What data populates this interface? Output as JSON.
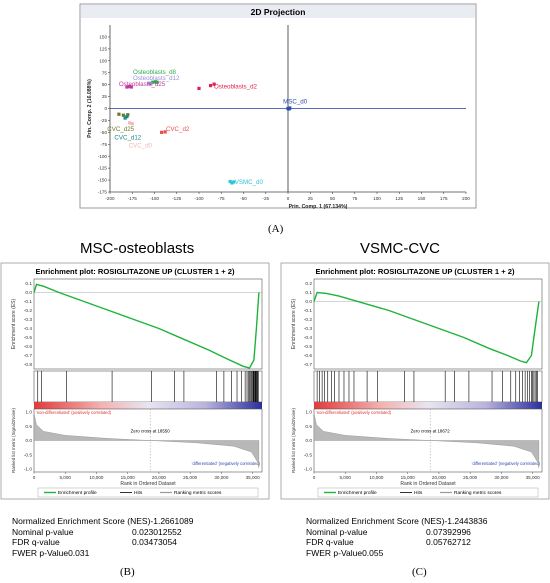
{
  "pca": {
    "title": "2D Projection",
    "xlabel": "Prin. Comp. 1  (67.134%)",
    "ylabel": "Prin. Comp. 2  (16.088%)",
    "xlim": [
      -200,
      200
    ],
    "ylim": [
      -175,
      175
    ],
    "xticks": [
      -200,
      -175,
      -150,
      -125,
      -100,
      -75,
      -50,
      -25,
      0,
      25,
      50,
      75,
      100,
      125,
      150,
      175,
      200
    ],
    "yticks": [
      150,
      125,
      100,
      75,
      50,
      25,
      0,
      -25,
      -50,
      -75,
      -100,
      -125,
      -150,
      -175
    ],
    "groups": [
      {
        "name": "Osteoblasts_d8",
        "color": "#2fa84f",
        "label_pos": [
          -150,
          72
        ],
        "points": [
          [
            -152,
            55
          ],
          [
            -149,
            56
          ],
          [
            -147,
            55
          ]
        ]
      },
      {
        "name": "Osteoblasts_d12",
        "color": "#9b8fd6",
        "label_pos": [
          -148,
          60
        ],
        "points": [
          [
            -156,
            53
          ],
          [
            -154,
            52
          ]
        ]
      },
      {
        "name": "Osteoblasts_d25",
        "color": "#c0399f",
        "label_pos": [
          -164,
          47
        ],
        "points": [
          [
            -181,
            45
          ],
          [
            -178,
            46
          ],
          [
            -176,
            45
          ]
        ]
      },
      {
        "name": "Osteoblasts_d2",
        "color": "#e0204f",
        "label_pos": [
          -59,
          42
        ],
        "points": [
          [
            -100,
            42
          ],
          [
            -87,
            48
          ],
          [
            -83,
            51
          ]
        ]
      },
      {
        "name": "MSC_d0",
        "color": "#2a4fb0",
        "label_pos": [
          8,
          11
        ],
        "points": [
          [
            0,
            0
          ],
          [
            1,
            -1
          ],
          [
            2,
            1
          ]
        ]
      },
      {
        "name": "CVC_d25",
        "color": "#6b7a2a",
        "label_pos": [
          -188,
          -47
        ],
        "points": [
          [
            -190,
            -12
          ],
          [
            -185,
            -14
          ],
          [
            -180,
            -13
          ]
        ]
      },
      {
        "name": "CVC_d2",
        "color": "#e85050",
        "label_pos": [
          -124,
          -47
        ],
        "points": [
          [
            -142,
            -50
          ],
          [
            -138,
            -49
          ]
        ]
      },
      {
        "name": "CVC_d12",
        "color": "#178a8a",
        "label_pos": [
          -180,
          -65
        ],
        "points": [
          [
            -181,
            -17
          ],
          [
            -183,
            -20
          ]
        ]
      },
      {
        "name": "CVC_d0",
        "color": "#f4b8b8",
        "label_pos": [
          -166,
          -82
        ],
        "points": [
          [
            -178,
            -30
          ],
          [
            -175,
            -32
          ]
        ]
      },
      {
        "name": "VSMC_d0",
        "color": "#2ec4d6",
        "label_pos": [
          -44,
          -158
        ],
        "points": [
          [
            -65,
            -153
          ],
          [
            -63,
            -156
          ],
          [
            -61,
            -154
          ]
        ]
      }
    ]
  },
  "panel_labels": {
    "a": "(A)",
    "b": "(B)",
    "c": "(C)"
  },
  "left": {
    "section_title": "MSC-osteoblasts",
    "plot_title": "Enrichment plot: ROSIGLITAZONE UP (CLUSTER 1 + 2)",
    "es_ylabel": "Enrichment score (ES)",
    "es_yticks": [
      0.1,
      0.0,
      -0.1,
      -0.2,
      -0.3,
      -0.4,
      -0.5,
      -0.6,
      -0.7,
      -0.8
    ],
    "es_ylim": [
      -0.85,
      0.15
    ],
    "es_curve": [
      [
        0,
        0.0
      ],
      [
        400,
        0.09
      ],
      [
        1500,
        0.07
      ],
      [
        4000,
        0.0
      ],
      [
        8000,
        -0.1
      ],
      [
        12000,
        -0.2
      ],
      [
        16000,
        -0.3
      ],
      [
        20000,
        -0.4
      ],
      [
        24000,
        -0.52
      ],
      [
        28000,
        -0.64
      ],
      [
        31000,
        -0.74
      ],
      [
        33500,
        -0.82
      ],
      [
        34500,
        -0.84
      ],
      [
        35200,
        -0.75
      ],
      [
        35600,
        -0.4
      ],
      [
        36000,
        0.0
      ]
    ],
    "hits": [
      600,
      1200,
      5200,
      12500,
      18800,
      22500,
      24000,
      29200,
      30400,
      31600,
      32500,
      33200,
      33800,
      34100,
      34300,
      34500,
      34700,
      34850,
      35000,
      35100,
      35200,
      35300,
      35400,
      35500,
      35600,
      35700,
      35800,
      35900
    ],
    "pos_label": "'non-differentiated' (positively correlated)",
    "neg_label": "'differentiated' (negatively correlated)",
    "zero_cross": "Zero cross at 18550",
    "metric_ylabel": "Ranked list metric (Signal2Noise)",
    "metric_yticks": [
      1.0,
      0.5,
      0.0,
      -0.5,
      -1.0
    ],
    "xticks": [
      0,
      5000,
      10000,
      15000,
      20000,
      25000,
      30000,
      35000
    ],
    "xtick_labels": [
      "0",
      "5,000",
      "10,000",
      "15,000",
      "20,000",
      "25,000",
      "30,000",
      "35,000"
    ],
    "xlabel": "Rank in Ordered Dataset",
    "legend": [
      "Enrichment profile",
      "Hits",
      "Ranking metric scores"
    ],
    "stats": [
      {
        "key": "Normalized Enrichment Score (NES)",
        "value": "-1.2661089"
      },
      {
        "key": "Nominal p-value",
        "value": "0.023012552"
      },
      {
        "key": "FDR q-value",
        "value": "0.03473054"
      },
      {
        "key": "FWER p-Value",
        "value": "0.031"
      }
    ]
  },
  "right": {
    "section_title": "VSMC-CVC",
    "plot_title": "Enrichment plot: ROSIGLITAZONE UP (CLUSTER 1 + 2)",
    "es_ylabel": "Enrichment score (ES)",
    "es_yticks": [
      0.2,
      0.1,
      0.0,
      -0.1,
      -0.2,
      -0.3,
      -0.4,
      -0.5,
      -0.6,
      -0.7
    ],
    "es_ylim": [
      -0.75,
      0.25
    ],
    "es_curve": [
      [
        0,
        0.0
      ],
      [
        500,
        0.1
      ],
      [
        2000,
        0.09
      ],
      [
        4000,
        0.06
      ],
      [
        8000,
        -0.02
      ],
      [
        12000,
        -0.1
      ],
      [
        16000,
        -0.2
      ],
      [
        20000,
        -0.3
      ],
      [
        24000,
        -0.4
      ],
      [
        28000,
        -0.52
      ],
      [
        31000,
        -0.6
      ],
      [
        33000,
        -0.66
      ],
      [
        34000,
        -0.68
      ],
      [
        34800,
        -0.6
      ],
      [
        35400,
        -0.3
      ],
      [
        36000,
        0.0
      ]
    ],
    "hits": [
      500,
      900,
      1300,
      1700,
      2200,
      2800,
      3300,
      4000,
      4800,
      5600,
      6400,
      8500,
      10200,
      14500,
      16000,
      21000,
      22500,
      24800,
      28500,
      30200,
      31500,
      32300,
      32900,
      33400,
      33800,
      34200,
      34500,
      34800,
      35000,
      35200,
      35400,
      35600,
      35800
    ],
    "pos_label": "'non-differentiated' (positively correlated)",
    "neg_label": "'differentiated' (negatively correlated)",
    "zero_cross": "Zero cross at 18672",
    "metric_ylabel": "Ranked list metric (Signal2Noise)",
    "metric_yticks": [
      1.0,
      0.5,
      0.0,
      -0.5,
      -1.0
    ],
    "xticks": [
      0,
      5000,
      10000,
      15000,
      20000,
      25000,
      30000,
      35000
    ],
    "xtick_labels": [
      "0",
      "5,000",
      "10,000",
      "15,000",
      "20,000",
      "25,000",
      "30,000",
      "35,000"
    ],
    "xlabel": "Rank in Ordered Dataset",
    "legend": [
      "Enrichment profile",
      "Hits",
      "Ranking metric scores"
    ],
    "stats": [
      {
        "key": "Normalized Enrichment Score (NES)",
        "value": "-1.2443836"
      },
      {
        "key": "Nominal p-value",
        "value": "0.07392996"
      },
      {
        "key": "FDR q-value",
        "value": "0.05762712"
      },
      {
        "key": "FWER p-Value",
        "value": "0.055"
      }
    ]
  },
  "chart_data": [
    {
      "type": "scatter",
      "title": "2D Projection",
      "xlabel": "Prin. Comp. 1  (67.134%)",
      "ylabel": "Prin. Comp. 2  (16.088%)",
      "xlim": [
        -200,
        200
      ],
      "ylim": [
        -175,
        175
      ],
      "series": [
        {
          "name": "Osteoblasts_d8",
          "points": [
            [
              -152,
              55
            ],
            [
              -149,
              56
            ],
            [
              -147,
              55
            ]
          ]
        },
        {
          "name": "Osteoblasts_d12",
          "points": [
            [
              -156,
              53
            ],
            [
              -154,
              52
            ]
          ]
        },
        {
          "name": "Osteoblasts_d25",
          "points": [
            [
              -181,
              45
            ],
            [
              -178,
              46
            ],
            [
              -176,
              45
            ]
          ]
        },
        {
          "name": "Osteoblasts_d2",
          "points": [
            [
              -100,
              42
            ],
            [
              -87,
              48
            ],
            [
              -83,
              51
            ]
          ]
        },
        {
          "name": "MSC_d0",
          "points": [
            [
              0,
              0
            ],
            [
              1,
              -1
            ],
            [
              2,
              1
            ]
          ]
        },
        {
          "name": "CVC_d25",
          "points": [
            [
              -190,
              -12
            ],
            [
              -185,
              -14
            ],
            [
              -180,
              -13
            ]
          ]
        },
        {
          "name": "CVC_d2",
          "points": [
            [
              -142,
              -50
            ],
            [
              -138,
              -49
            ]
          ]
        },
        {
          "name": "CVC_d12",
          "points": [
            [
              -181,
              -17
            ],
            [
              -183,
              -20
            ]
          ]
        },
        {
          "name": "CVC_d0",
          "points": [
            [
              -178,
              -30
            ],
            [
              -175,
              -32
            ]
          ]
        },
        {
          "name": "VSMC_d0",
          "points": [
            [
              -65,
              -153
            ],
            [
              -63,
              -156
            ],
            [
              -61,
              -154
            ]
          ]
        }
      ]
    },
    {
      "type": "line",
      "title": "Enrichment plot: ROSIGLITAZONE UP (CLUSTER 1 + 2)",
      "subtitle": "MSC-osteoblasts",
      "xlabel": "Rank in Ordered Dataset",
      "ylabel": "Enrichment score (ES)",
      "ylim": [
        -0.85,
        0.15
      ],
      "series": [
        {
          "name": "Enrichment profile",
          "points": [
            [
              0,
              0.0
            ],
            [
              400,
              0.09
            ],
            [
              1500,
              0.07
            ],
            [
              4000,
              0.0
            ],
            [
              8000,
              -0.1
            ],
            [
              12000,
              -0.2
            ],
            [
              16000,
              -0.3
            ],
            [
              20000,
              -0.4
            ],
            [
              24000,
              -0.52
            ],
            [
              28000,
              -0.64
            ],
            [
              31000,
              -0.74
            ],
            [
              33500,
              -0.82
            ],
            [
              34500,
              -0.84
            ],
            [
              35200,
              -0.75
            ],
            [
              35600,
              -0.4
            ],
            [
              36000,
              0.0
            ]
          ]
        }
      ]
    },
    {
      "type": "line",
      "title": "Enrichment plot: ROSIGLITAZONE UP (CLUSTER 1 + 2)",
      "subtitle": "VSMC-CVC",
      "xlabel": "Rank in Ordered Dataset",
      "ylabel": "Enrichment score (ES)",
      "ylim": [
        -0.75,
        0.25
      ],
      "series": [
        {
          "name": "Enrichment profile",
          "points": [
            [
              0,
              0.0
            ],
            [
              500,
              0.1
            ],
            [
              2000,
              0.09
            ],
            [
              4000,
              0.06
            ],
            [
              8000,
              -0.02
            ],
            [
              12000,
              -0.1
            ],
            [
              16000,
              -0.2
            ],
            [
              20000,
              -0.3
            ],
            [
              24000,
              -0.4
            ],
            [
              28000,
              -0.52
            ],
            [
              31000,
              -0.6
            ],
            [
              33000,
              -0.66
            ],
            [
              34000,
              -0.68
            ],
            [
              34800,
              -0.6
            ],
            [
              35400,
              -0.3
            ],
            [
              36000,
              0.0
            ]
          ]
        }
      ]
    }
  ]
}
